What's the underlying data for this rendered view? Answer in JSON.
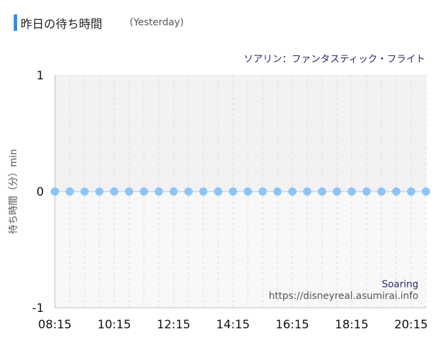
{
  "header": {
    "title": "昨日の待ち時間",
    "subtitle": "(Yesterday)"
  },
  "chart_data": {
    "type": "scatter",
    "title": "ソアリン：ファンタスティック・フライト",
    "ylabel": "待ち時間（分）min",
    "xlabel": "",
    "x_ticks": [
      "08:15",
      "10:15",
      "12:15",
      "14:15",
      "16:15",
      "18:15",
      "20:15"
    ],
    "y_ticks": [
      "1",
      "0",
      "-1"
    ],
    "ylim": [
      -1,
      1
    ],
    "xlim": [
      "08:15",
      "20:45"
    ],
    "grid": true,
    "series": [
      {
        "color": "#8ec3f5",
        "x": [
          "08:15",
          "08:45",
          "09:15",
          "09:45",
          "10:15",
          "10:45",
          "11:15",
          "11:45",
          "12:15",
          "12:45",
          "13:15",
          "13:45",
          "14:15",
          "14:45",
          "15:15",
          "15:45",
          "16:15",
          "16:45",
          "17:15",
          "17:45",
          "18:15",
          "18:45",
          "19:15",
          "19:45",
          "20:15",
          "20:45"
        ],
        "y": [
          0,
          0,
          0,
          0,
          0,
          0,
          0,
          0,
          0,
          0,
          0,
          0,
          0,
          0,
          0,
          0,
          0,
          0,
          0,
          0,
          0,
          0,
          0,
          0,
          0,
          0
        ]
      }
    ],
    "watermark": {
      "name": "Soaring",
      "url": "https://disneyreal.asumirai.info"
    }
  }
}
